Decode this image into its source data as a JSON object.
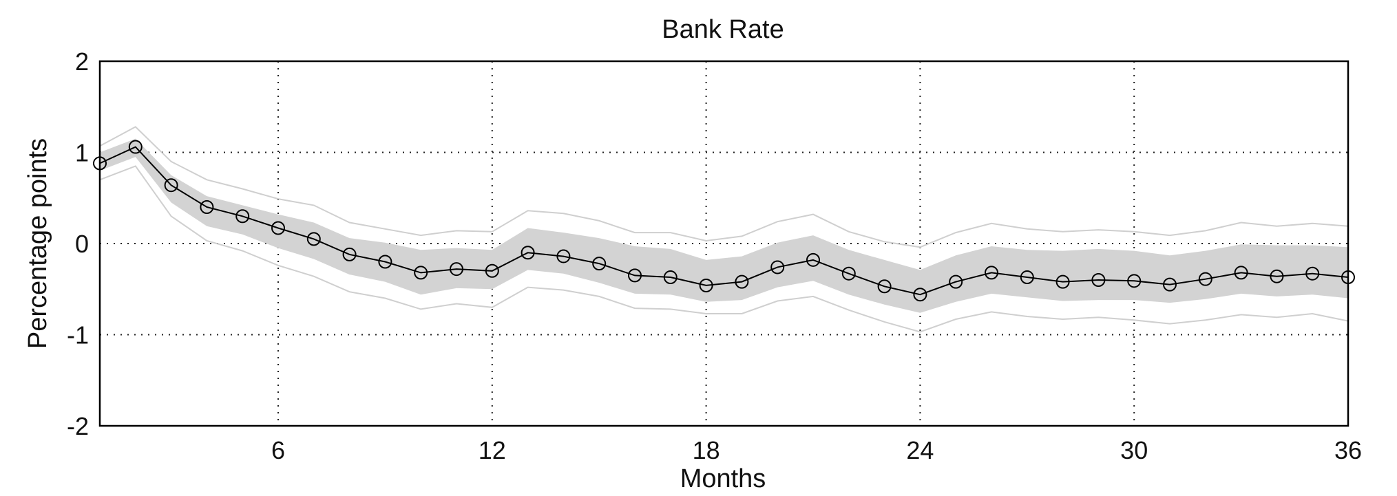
{
  "chart_data": {
    "type": "line",
    "title": "Bank Rate",
    "xlabel": "Months",
    "ylabel": "Percentage points",
    "xlim": [
      1,
      36
    ],
    "ylim": [
      -2,
      2
    ],
    "x_ticks": [
      6,
      12,
      18,
      24,
      30,
      36
    ],
    "y_ticks": [
      -2,
      -1,
      0,
      1,
      2
    ],
    "grid": true,
    "x": [
      1,
      2,
      3,
      4,
      5,
      6,
      7,
      8,
      9,
      10,
      11,
      12,
      13,
      14,
      15,
      16,
      17,
      18,
      19,
      20,
      21,
      22,
      23,
      24,
      25,
      26,
      27,
      28,
      29,
      30,
      31,
      32,
      33,
      34,
      35,
      36
    ],
    "series": [
      {
        "role": "median",
        "values": [
          0.88,
          1.06,
          0.64,
          0.4,
          0.3,
          0.17,
          0.05,
          -0.12,
          -0.2,
          -0.32,
          -0.28,
          -0.3,
          -0.1,
          -0.14,
          -0.22,
          -0.35,
          -0.37,
          -0.46,
          -0.42,
          -0.26,
          -0.18,
          -0.33,
          -0.47,
          -0.56,
          -0.42,
          -0.32,
          -0.37,
          -0.42,
          -0.4,
          -0.41,
          -0.45,
          -0.39,
          -0.32,
          -0.36,
          -0.33,
          -0.37
        ]
      },
      {
        "role": "inner-band-upper",
        "values": [
          1.0,
          1.15,
          0.75,
          0.52,
          0.42,
          0.32,
          0.23,
          0.06,
          0.01,
          -0.07,
          -0.05,
          -0.07,
          0.17,
          0.12,
          0.06,
          -0.03,
          -0.06,
          -0.18,
          -0.14,
          0.01,
          0.09,
          -0.07,
          -0.18,
          -0.29,
          -0.13,
          -0.03,
          -0.07,
          -0.08,
          -0.06,
          -0.08,
          -0.13,
          -0.08,
          -0.01,
          -0.02,
          -0.02,
          -0.04
        ]
      },
      {
        "role": "inner-band-lower",
        "values": [
          0.8,
          0.95,
          0.45,
          0.19,
          0.1,
          -0.05,
          -0.17,
          -0.34,
          -0.42,
          -0.56,
          -0.49,
          -0.5,
          -0.29,
          -0.33,
          -0.43,
          -0.55,
          -0.56,
          -0.64,
          -0.62,
          -0.48,
          -0.41,
          -0.56,
          -0.67,
          -0.76,
          -0.64,
          -0.55,
          -0.59,
          -0.63,
          -0.62,
          -0.62,
          -0.65,
          -0.61,
          -0.55,
          -0.58,
          -0.56,
          -0.6
        ]
      },
      {
        "role": "outer-band-upper",
        "values": [
          1.07,
          1.28,
          0.9,
          0.7,
          0.6,
          0.49,
          0.42,
          0.23,
          0.16,
          0.09,
          0.14,
          0.13,
          0.36,
          0.33,
          0.25,
          0.12,
          0.12,
          0.03,
          0.08,
          0.24,
          0.32,
          0.13,
          0.02,
          -0.04,
          0.12,
          0.22,
          0.16,
          0.13,
          0.15,
          0.13,
          0.09,
          0.14,
          0.23,
          0.19,
          0.22,
          0.19
        ]
      },
      {
        "role": "outer-band-lower",
        "values": [
          0.7,
          0.85,
          0.3,
          0.03,
          -0.08,
          -0.24,
          -0.36,
          -0.53,
          -0.6,
          -0.72,
          -0.66,
          -0.7,
          -0.48,
          -0.51,
          -0.58,
          -0.71,
          -0.72,
          -0.77,
          -0.77,
          -0.63,
          -0.58,
          -0.73,
          -0.86,
          -0.97,
          -0.83,
          -0.75,
          -0.8,
          -0.83,
          -0.81,
          -0.84,
          -0.88,
          -0.84,
          -0.78,
          -0.81,
          -0.77,
          -0.85
        ]
      }
    ],
    "colors": {
      "median_line": "#000000",
      "inner_band": "#d3d3d3",
      "outer_band_lines": "#cfcfcf",
      "grid": "#222222"
    }
  }
}
